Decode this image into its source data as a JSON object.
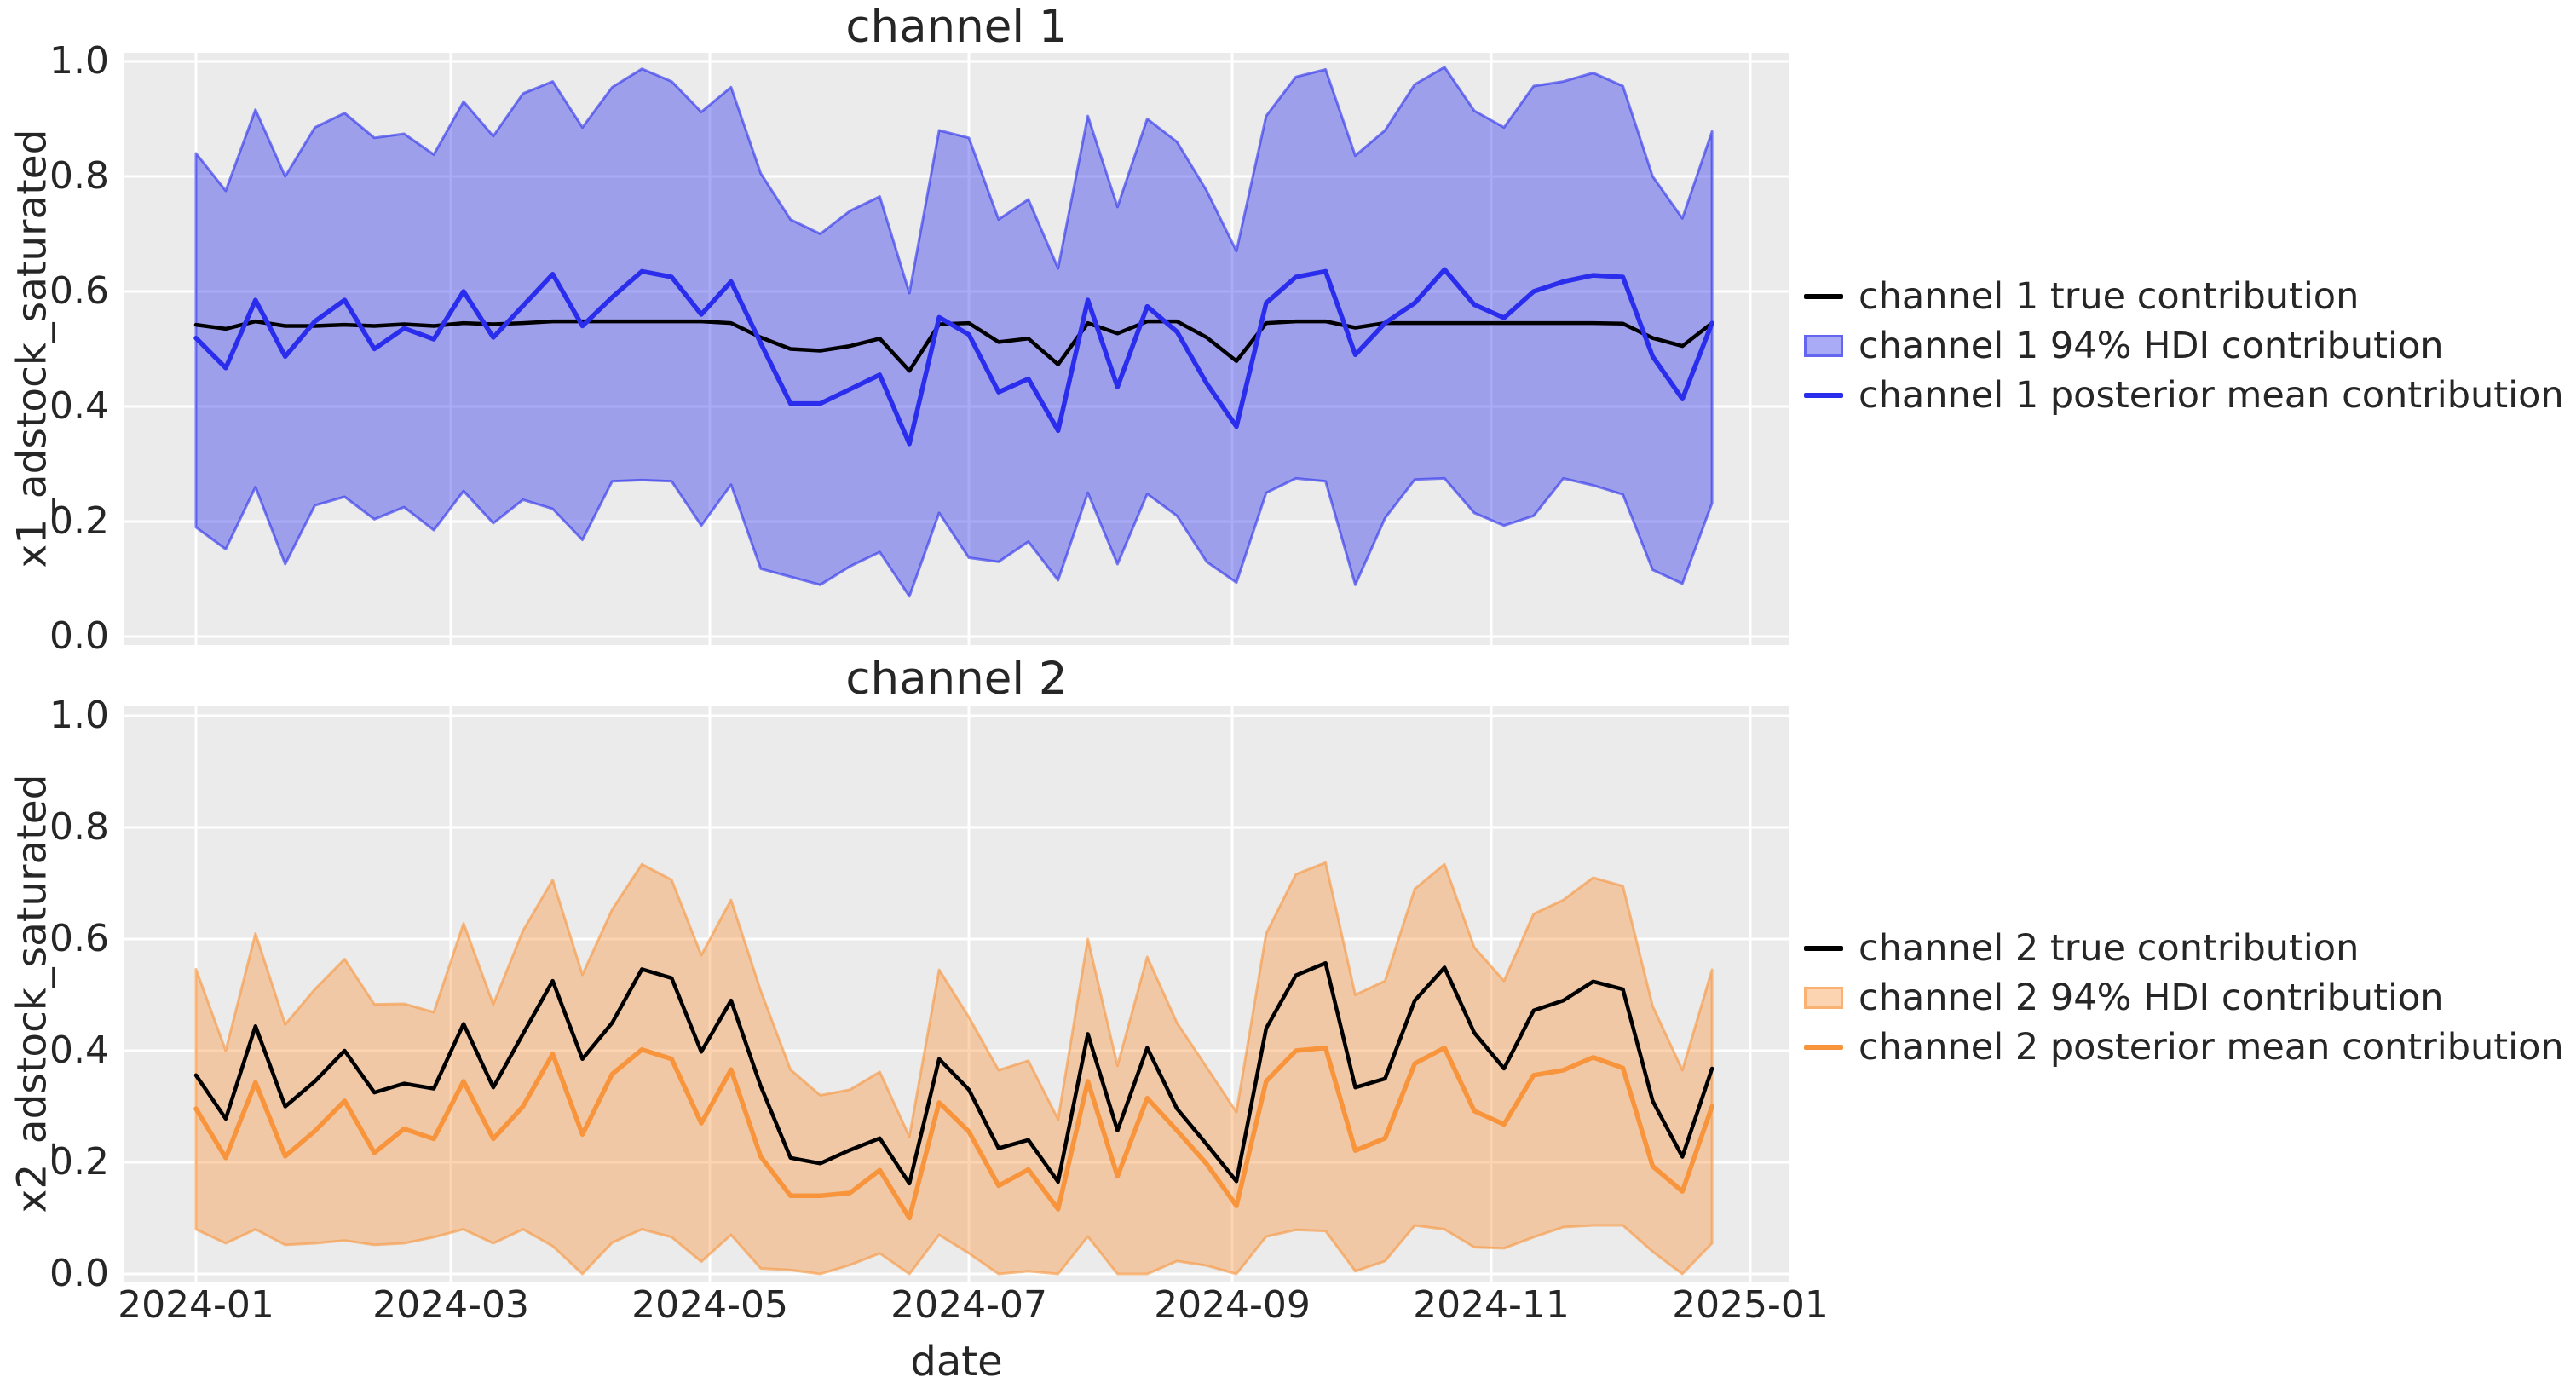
{
  "figure": {
    "kind": "matplotlib-dual-subplot",
    "background": "#ffffff",
    "text_color": "#262626",
    "plot_bg": "#ebebeb",
    "grid_color": "#ffffff"
  },
  "chart_data": [
    {
      "type": "line",
      "title": "channel 1",
      "ylabel": "x1_adstock_saturated",
      "x_start_date": "2024-01-01",
      "x_step_days": 7,
      "n_points": 52,
      "x_tick_labels": [
        "2024-01",
        "2024-03",
        "2024-05",
        "2024-07",
        "2024-09",
        "2024-11",
        "2025-01"
      ],
      "x_tick_days": [
        0,
        60,
        121,
        182,
        244,
        305,
        366
      ],
      "y_ticks": [
        0.0,
        0.2,
        0.4,
        0.6,
        0.8,
        1.0
      ],
      "y_tick_labels": [
        "0.0",
        "0.2",
        "0.4",
        "0.6",
        "0.8",
        "1.0"
      ],
      "ylim": [
        0.0,
        1.0
      ],
      "grid": true,
      "legend_position": "right-outside",
      "colors": {
        "true_line": "#000000",
        "mean_line": "#2a2eec",
        "hdi_band": "#2a2eec",
        "band_alpha": 0.4
      },
      "legend": [
        "channel 1 true contribution",
        "channel 1 94% HDI contribution",
        "channel 1 posterior mean contribution"
      ],
      "series": [
        {
          "name": "channel 1 true contribution",
          "values": [
            0.542,
            0.535,
            0.548,
            0.54,
            0.54,
            0.542,
            0.54,
            0.543,
            0.54,
            0.545,
            0.543,
            0.545,
            0.548,
            0.548,
            0.548,
            0.548,
            0.548,
            0.548,
            0.545,
            0.52,
            0.5,
            0.497,
            0.505,
            0.518,
            0.462,
            0.543,
            0.545,
            0.512,
            0.518,
            0.473,
            0.545,
            0.527,
            0.548,
            0.548,
            0.52,
            0.479,
            0.545,
            0.548,
            0.548,
            0.537,
            0.545,
            0.545,
            0.545,
            0.545,
            0.545,
            0.545,
            0.545,
            0.545,
            0.544,
            0.519,
            0.505,
            0.545
          ]
        },
        {
          "name": "channel 1 posterior mean contribution",
          "values": [
            0.519,
            0.467,
            0.585,
            0.487,
            0.548,
            0.585,
            0.5,
            0.536,
            0.517,
            0.6,
            0.52,
            0.575,
            0.63,
            0.54,
            0.59,
            0.635,
            0.625,
            0.56,
            0.617,
            0.51,
            0.405,
            0.405,
            0.43,
            0.455,
            0.335,
            0.555,
            0.525,
            0.425,
            0.448,
            0.358,
            0.585,
            0.434,
            0.574,
            0.53,
            0.44,
            0.365,
            0.58,
            0.625,
            0.635,
            0.49,
            0.545,
            0.58,
            0.638,
            0.577,
            0.554,
            0.6,
            0.617,
            0.628,
            0.625,
            0.487,
            0.413,
            0.545
          ]
        }
      ],
      "hdi": {
        "name": "channel 1 94% HDI contribution",
        "upper": [
          0.84,
          0.775,
          0.916,
          0.8,
          0.885,
          0.91,
          0.867,
          0.874,
          0.838,
          0.93,
          0.87,
          0.944,
          0.965,
          0.885,
          0.955,
          0.987,
          0.965,
          0.912,
          0.955,
          0.805,
          0.725,
          0.7,
          0.74,
          0.765,
          0.597,
          0.88,
          0.867,
          0.725,
          0.76,
          0.64,
          0.905,
          0.747,
          0.9,
          0.86,
          0.775,
          0.67,
          0.905,
          0.973,
          0.986,
          0.836,
          0.88,
          0.96,
          0.99,
          0.914,
          0.885,
          0.957,
          0.965,
          0.98,
          0.957,
          0.8,
          0.727,
          0.878
        ],
        "lower": [
          0.19,
          0.152,
          0.26,
          0.126,
          0.228,
          0.243,
          0.204,
          0.225,
          0.185,
          0.253,
          0.197,
          0.238,
          0.222,
          0.168,
          0.27,
          0.272,
          0.27,
          0.193,
          0.264,
          0.118,
          0.104,
          0.09,
          0.122,
          0.147,
          0.07,
          0.215,
          0.137,
          0.13,
          0.165,
          0.098,
          0.25,
          0.126,
          0.248,
          0.21,
          0.13,
          0.094,
          0.25,
          0.275,
          0.27,
          0.09,
          0.206,
          0.273,
          0.275,
          0.215,
          0.193,
          0.21,
          0.275,
          0.263,
          0.247,
          0.116,
          0.092,
          0.232
        ]
      }
    },
    {
      "type": "line",
      "title": "channel 2",
      "ylabel": "x2_adstock_saturated",
      "xlabel": "date",
      "x_start_date": "2024-01-01",
      "x_step_days": 7,
      "n_points": 52,
      "x_tick_labels": [
        "2024-01",
        "2024-03",
        "2024-05",
        "2024-07",
        "2024-09",
        "2024-11",
        "2025-01"
      ],
      "x_tick_days": [
        0,
        60,
        121,
        182,
        244,
        305,
        366
      ],
      "y_ticks": [
        0.0,
        0.2,
        0.4,
        0.6,
        0.8,
        1.0
      ],
      "y_tick_labels": [
        "0.0",
        "0.2",
        "0.4",
        "0.6",
        "0.8",
        "1.0"
      ],
      "ylim": [
        0.0,
        1.0
      ],
      "grid": true,
      "legend_position": "right-outside",
      "colors": {
        "true_line": "#000000",
        "mean_line": "#f8943c",
        "hdi_band": "#f8943c",
        "band_alpha": 0.4
      },
      "legend": [
        "channel 2 true contribution",
        "channel 2 94% HDI contribution",
        "channel 2 posterior mean contribution"
      ],
      "series": [
        {
          "name": "channel 2 true contribution",
          "values": [
            0.356,
            0.278,
            0.444,
            0.3,
            0.345,
            0.4,
            0.325,
            0.341,
            0.332,
            0.448,
            0.334,
            0.43,
            0.525,
            0.385,
            0.45,
            0.546,
            0.53,
            0.398,
            0.49,
            0.336,
            0.208,
            0.198,
            0.222,
            0.243,
            0.162,
            0.385,
            0.33,
            0.225,
            0.24,
            0.165,
            0.43,
            0.257,
            0.405,
            0.296,
            0.232,
            0.166,
            0.44,
            0.535,
            0.557,
            0.334,
            0.35,
            0.49,
            0.549,
            0.432,
            0.368,
            0.472,
            0.49,
            0.524,
            0.51,
            0.31,
            0.21,
            0.368
          ]
        },
        {
          "name": "channel 2 posterior mean contribution",
          "values": [
            0.296,
            0.208,
            0.343,
            0.211,
            0.256,
            0.31,
            0.217,
            0.26,
            0.242,
            0.345,
            0.242,
            0.3,
            0.394,
            0.25,
            0.358,
            0.402,
            0.385,
            0.27,
            0.366,
            0.21,
            0.14,
            0.14,
            0.145,
            0.186,
            0.1,
            0.307,
            0.255,
            0.158,
            0.187,
            0.116,
            0.345,
            0.175,
            0.315,
            0.257,
            0.197,
            0.122,
            0.345,
            0.4,
            0.405,
            0.221,
            0.243,
            0.377,
            0.405,
            0.292,
            0.268,
            0.356,
            0.365,
            0.388,
            0.369,
            0.193,
            0.148,
            0.3
          ]
        }
      ],
      "hdi": {
        "name": "channel 2 94% HDI contribution",
        "upper": [
          0.546,
          0.4,
          0.61,
          0.447,
          0.51,
          0.564,
          0.483,
          0.484,
          0.469,
          0.628,
          0.483,
          0.615,
          0.706,
          0.536,
          0.653,
          0.734,
          0.706,
          0.571,
          0.67,
          0.507,
          0.366,
          0.32,
          0.33,
          0.362,
          0.246,
          0.545,
          0.46,
          0.365,
          0.382,
          0.277,
          0.6,
          0.373,
          0.568,
          0.45,
          0.37,
          0.29,
          0.61,
          0.716,
          0.737,
          0.5,
          0.525,
          0.69,
          0.734,
          0.585,
          0.525,
          0.645,
          0.67,
          0.71,
          0.695,
          0.48,
          0.365,
          0.545
        ],
        "lower": [
          0.08,
          0.055,
          0.08,
          0.052,
          0.055,
          0.06,
          0.052,
          0.055,
          0.066,
          0.08,
          0.055,
          0.08,
          0.05,
          0.0,
          0.056,
          0.08,
          0.066,
          0.022,
          0.07,
          0.01,
          0.007,
          0.0,
          0.016,
          0.037,
          0.0,
          0.07,
          0.037,
          0.0,
          0.005,
          0.0,
          0.067,
          0.0,
          0.0,
          0.023,
          0.015,
          0.0,
          0.067,
          0.079,
          0.077,
          0.005,
          0.023,
          0.087,
          0.08,
          0.048,
          0.046,
          0.066,
          0.084,
          0.087,
          0.087,
          0.04,
          0.0,
          0.055
        ]
      }
    }
  ]
}
